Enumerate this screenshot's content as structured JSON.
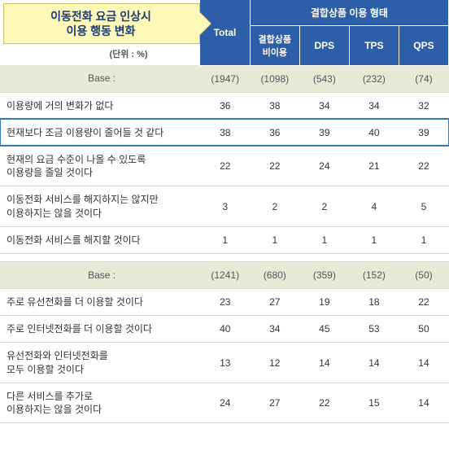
{
  "title_line1": "이동전화 요금 인상시",
  "title_line2": "이용 행동 변화",
  "unit": "(단위 : %)",
  "headers": {
    "total": "Total",
    "group": "결합상품 이용 형태",
    "sub1": "결합상품\n비이용",
    "sub2": "DPS",
    "sub3": "TPS",
    "sub4": "QPS"
  },
  "section1": {
    "base_label": "Base :",
    "base": [
      "(1947)",
      "(1098)",
      "(543)",
      "(232)",
      "(74)"
    ],
    "rows": [
      {
        "label": "이용량에 거의 변화가 없다",
        "v": [
          "36",
          "38",
          "34",
          "34",
          "32"
        ],
        "hl": false
      },
      {
        "label": "현재보다 조금 이용량이 줄어들 것 같다",
        "v": [
          "38",
          "36",
          "39",
          "40",
          "39"
        ],
        "hl": true
      },
      {
        "label": "현재의 요금 수준이 나올 수 있도록\n이용량을 줄일 것이다",
        "v": [
          "22",
          "22",
          "24",
          "21",
          "22"
        ],
        "hl": false
      },
      {
        "label": "이동전화 서비스를 해지하지는 않지만\n이용하지는 않을 것이다",
        "v": [
          "3",
          "2",
          "2",
          "4",
          "5"
        ],
        "hl": false
      },
      {
        "label": "이동전화 서비스를 해지할 것이다",
        "v": [
          "1",
          "1",
          "1",
          "1",
          "1"
        ],
        "hl": false
      }
    ]
  },
  "section2": {
    "base_label": "Base :",
    "base": [
      "(1241)",
      "(680)",
      "(359)",
      "(152)",
      "(50)"
    ],
    "rows": [
      {
        "label": "주로 유선전화를 더 이용할 것이다",
        "v": [
          "23",
          "27",
          "19",
          "18",
          "22"
        ]
      },
      {
        "label": "주로 인터넷전화를 더 이용할 것이다",
        "v": [
          "40",
          "34",
          "45",
          "53",
          "50"
        ]
      },
      {
        "label": "유선전화와 인터넷전화를\n모두 이용할 것이다",
        "v": [
          "13",
          "12",
          "14",
          "14",
          "14"
        ]
      },
      {
        "label": "다른 서비스를 추가로\n이용하지는 않을 것이다",
        "v": [
          "24",
          "27",
          "22",
          "15",
          "14"
        ]
      }
    ]
  }
}
